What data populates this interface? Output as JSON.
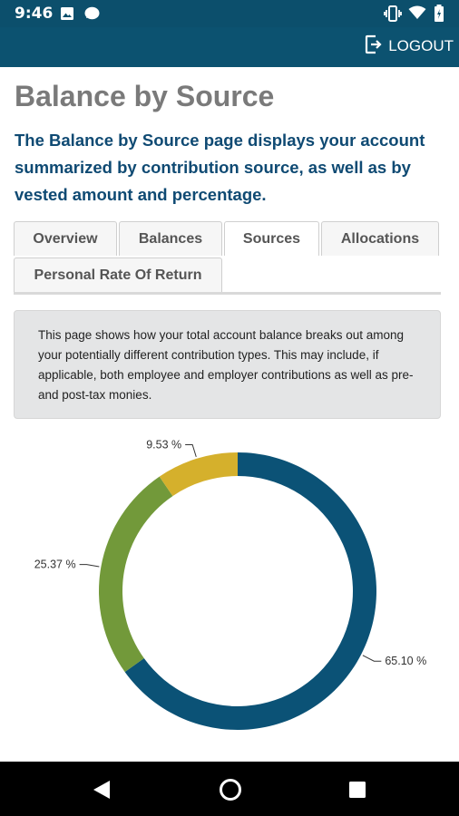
{
  "status_bar": {
    "time": "9:46",
    "icons": [
      "image-icon",
      "chat-bubble-icon",
      "vibrate-icon",
      "wifi-icon",
      "battery-icon"
    ]
  },
  "app_bar": {
    "logout_label": "LOGOUT",
    "logout_icon": "logout-icon"
  },
  "page": {
    "title": "Balance by Source",
    "intro": "The Balance by Source page displays your account summarized by contribution source, as well as by vested amount and percentage."
  },
  "tabs": [
    {
      "label": "Overview",
      "active": false
    },
    {
      "label": "Balances",
      "active": false
    },
    {
      "label": "Sources",
      "active": true
    },
    {
      "label": "Allocations",
      "active": false
    },
    {
      "label": "Personal Rate Of Return",
      "active": false
    }
  ],
  "info_box": {
    "text": "This page shows how your total account balance breaks out among your potentially different contribution types. This may include, if applicable, both employee and employer contributions as well as pre- and post-tax monies."
  },
  "colors": {
    "primary": "#0c5270",
    "title_grey": "#7a7a7a",
    "intro_blue": "#0f4a73"
  },
  "chart_data": {
    "type": "pie",
    "variant": "donut",
    "slices": [
      {
        "value": 65.1,
        "label": "65.10 %",
        "color": "#0b5276"
      },
      {
        "value": 25.37,
        "label": "25.37 %",
        "color": "#72993a"
      },
      {
        "value": 9.53,
        "label": "9.53 %",
        "color": "#d5b02c"
      }
    ]
  },
  "nav_bar": {
    "buttons": [
      "back-icon",
      "home-icon",
      "recents-icon"
    ]
  }
}
